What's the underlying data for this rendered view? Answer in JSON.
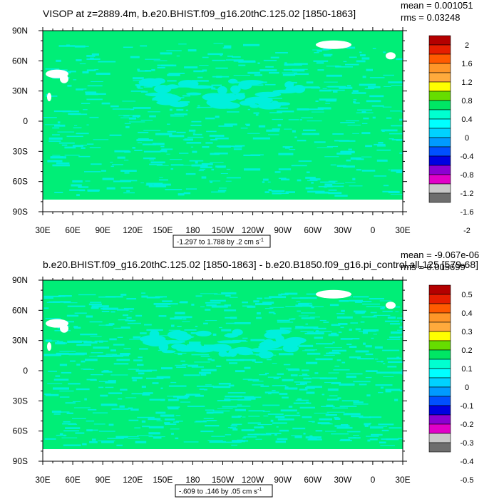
{
  "chart_data": [
    {
      "type": "heatmap",
      "title": "VISOP at z=2889.4m, b.e20.BHIST.f09_g16.20thC.125.02 [1850-1863]",
      "stats": [
        "mean = 0.001051",
        "rms = 0.03248"
      ],
      "x_ticks": [
        "30E",
        "60E",
        "90E",
        "120E",
        "150E",
        "180",
        "150W",
        "120W",
        "90W",
        "60W",
        "30W",
        "0",
        "30E"
      ],
      "y_ticks": [
        "90N",
        "60N",
        "30N",
        "0",
        "30S",
        "60S",
        "90S"
      ],
      "contour_info": "-1.297 to 1.788 by .2 cm s",
      "contour_info_exp": "-1",
      "colorbar": {
        "labels": [
          "2",
          "1.6",
          "1.2",
          "0.8",
          "0.4",
          "0",
          "-0.4",
          "-0.8",
          "-1.2",
          "-1.6",
          "-2"
        ],
        "colors": [
          "#b40000",
          "#e61e00",
          "#ff5a00",
          "#ff9628",
          "#ffaa3c",
          "#ffff00",
          "#66dd00",
          "#00e664",
          "#00ffd0",
          "#00ffff",
          "#00d2ff",
          "#009bff",
          "#0050ff",
          "#0000e1",
          "#8c00d2",
          "#e100c8",
          "#c8c8c8",
          "#6e6e6e"
        ]
      },
      "dominant_color": "#00ee77",
      "secondary_color": "#00f0dc"
    },
    {
      "type": "heatmap",
      "title": "b.e20.BHIST.f09_g16.20thC.125.02 [1850-1863] - b.e20.B1850.f09_g16.pi_control.all.125 [579-68]",
      "stats": [
        "mean = -9.067e-06",
        "rms = 0.005699"
      ],
      "x_ticks": [
        "30E",
        "60E",
        "90E",
        "120E",
        "150E",
        "180",
        "150W",
        "120W",
        "90W",
        "60W",
        "30W",
        "0",
        "30E"
      ],
      "y_ticks": [
        "90N",
        "60N",
        "30N",
        "0",
        "30S",
        "60S",
        "90S"
      ],
      "contour_info": "-.609 to .146 by .05 cm s",
      "contour_info_exp": "-1",
      "colorbar": {
        "labels": [
          "0.5",
          "0.4",
          "0.3",
          "0.2",
          "0.1",
          "0",
          "-0.1",
          "-0.2",
          "-0.3",
          "-0.4",
          "-0.5"
        ],
        "colors": [
          "#b40000",
          "#e61e00",
          "#ff5a00",
          "#ff9628",
          "#ffaa3c",
          "#ffff00",
          "#66dd00",
          "#00e664",
          "#00ffd0",
          "#00ffff",
          "#00d2ff",
          "#009bff",
          "#0050ff",
          "#0000e1",
          "#8c00d2",
          "#e100c8",
          "#c8c8c8",
          "#6e6e6e"
        ]
      },
      "dominant_color": "#00ee77",
      "secondary_color": "#00f0dc"
    }
  ]
}
